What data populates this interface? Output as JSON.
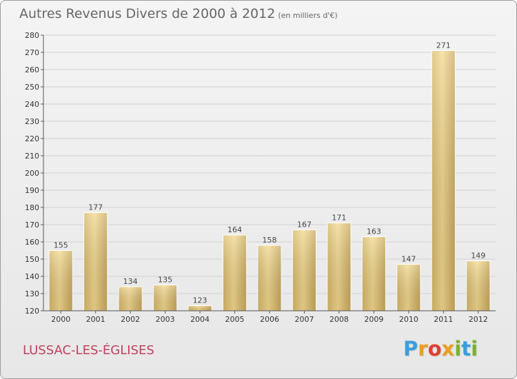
{
  "chart_data": {
    "type": "bar",
    "title": "Autres Revenus Divers de 2000 à 2012",
    "subtitle": "(en milliers d'€)",
    "categories": [
      "2000",
      "2001",
      "2002",
      "2003",
      "2004",
      "2005",
      "2006",
      "2007",
      "2008",
      "2009",
      "2010",
      "2011",
      "2012"
    ],
    "values": [
      155,
      177,
      134,
      135,
      123,
      164,
      158,
      167,
      171,
      163,
      147,
      271,
      149
    ],
    "ylim": [
      120,
      280
    ],
    "yticks": [
      120,
      130,
      140,
      150,
      160,
      170,
      180,
      190,
      200,
      210,
      220,
      230,
      240,
      250,
      260,
      270,
      280
    ],
    "grid": true,
    "bar_color": "#e6c878"
  },
  "footer": {
    "commune": "LUSSAC-LES-ÉGLISES",
    "logo_letters": [
      "P",
      "r",
      "o",
      "x",
      "i",
      "t",
      "i"
    ]
  }
}
